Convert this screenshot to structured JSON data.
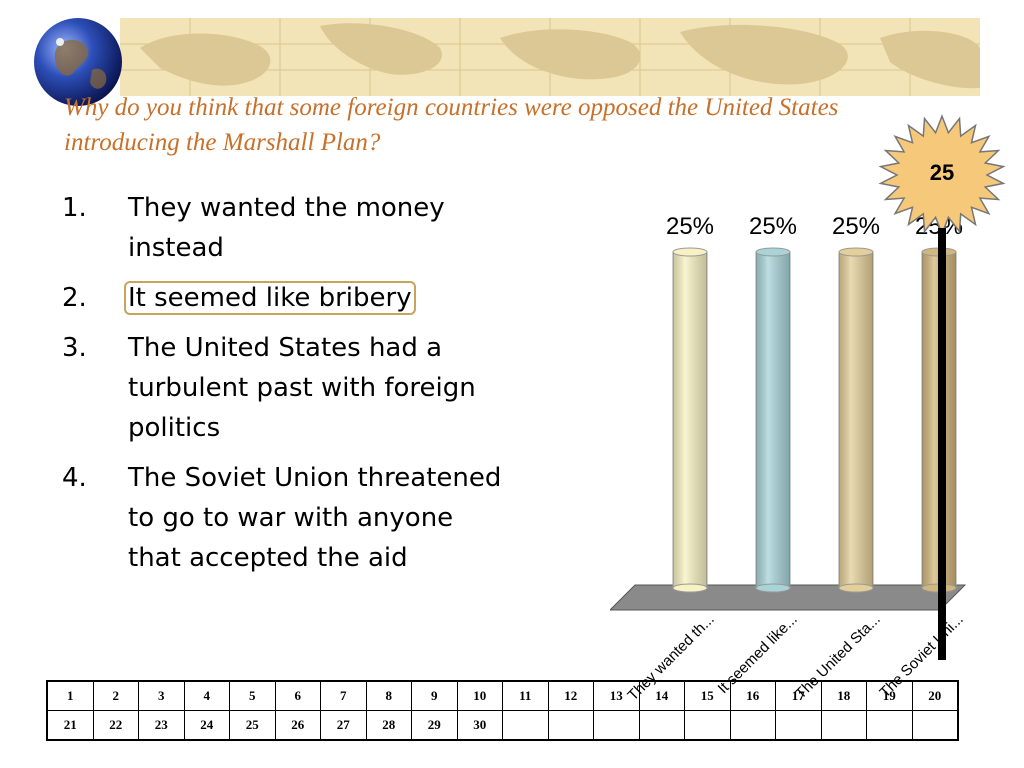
{
  "slide": {
    "question": "Why do you think that some foreign countries were opposed the United States introducing the Marshall Plan?",
    "answers": [
      {
        "number": "1.",
        "text": "They wanted the money instead"
      },
      {
        "number": "2.",
        "text": "It seemed like bribery"
      },
      {
        "number": "3.",
        "text": "The United States had a turbulent past with foreign politics"
      },
      {
        "number": "4.",
        "text": "The Soviet Union threatened to go to war with anyone that accepted the aid"
      }
    ],
    "selected_answer_index": 1,
    "timer": "25",
    "icons": [
      "globe-icon",
      "countdown-starburst-icon"
    ]
  },
  "colors": {
    "question": "#c8702a",
    "map_banner": "#f3e4b7",
    "bars": [
      "#f8f2c2",
      "#a8d4d8",
      "#e4cf98",
      "#d3b67c"
    ],
    "chart_floor": "#8a8a8a",
    "selection_outline": "#c9a25c"
  },
  "chart_data": {
    "type": "bar",
    "categories": [
      "They wanted th...",
      "It seemed like...",
      "The United Sta...",
      "The Soviet Uni..."
    ],
    "values": [
      25,
      25,
      25,
      25
    ],
    "data_labels": [
      "25%",
      "25%",
      "25%",
      "25%"
    ],
    "ylim": [
      0,
      100
    ],
    "title": "",
    "xlabel": "",
    "ylabel": "",
    "grid": false,
    "style": "3d-cylinder"
  },
  "responders": {
    "rows": [
      [
        "1",
        "2",
        "3",
        "4",
        "5",
        "6",
        "7",
        "8",
        "9",
        "10",
        "11",
        "12",
        "13",
        "14",
        "15",
        "16",
        "17",
        "18",
        "19",
        "20"
      ],
      [
        "21",
        "22",
        "23",
        "24",
        "25",
        "26",
        "27",
        "28",
        "29",
        "30",
        "",
        "",
        "",
        "",
        "",
        "",
        "",
        "",
        "",
        ""
      ]
    ]
  }
}
